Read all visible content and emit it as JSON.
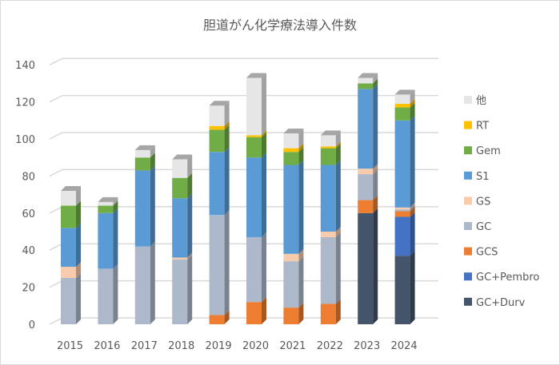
{
  "chart_data": {
    "type": "bar",
    "stacked": true,
    "style": "3d-stacked-column",
    "title": "胆道がん化学療法導入件数",
    "xlabel": "",
    "ylabel": "",
    "ylim": [
      0,
      140
    ],
    "yticks": [
      0,
      20,
      40,
      60,
      80,
      100,
      120,
      140
    ],
    "grid": true,
    "legend_position": "right",
    "categories": [
      "2015",
      "2016",
      "2017",
      "2018",
      "2019",
      "2020",
      "2021",
      "2022",
      "2023",
      "2024"
    ],
    "series": [
      {
        "name": "GC+Durv",
        "color": "#44546a",
        "values": [
          0,
          0,
          0,
          0,
          0,
          0,
          0,
          0,
          60,
          37
        ]
      },
      {
        "name": "GC+Pembro",
        "color": "#4472c4",
        "values": [
          0,
          0,
          0,
          0,
          0,
          0,
          0,
          0,
          0,
          21
        ]
      },
      {
        "name": "GCS",
        "color": "#ed7d31",
        "values": [
          0,
          0,
          0,
          0,
          5,
          12,
          9,
          11,
          7,
          3
        ]
      },
      {
        "name": "GC",
        "color": "#adb9ca",
        "values": [
          25,
          30,
          42,
          35,
          54,
          35,
          25,
          36,
          14,
          1
        ]
      },
      {
        "name": "GS",
        "color": "#f8cbad",
        "values": [
          6,
          0,
          0,
          1,
          0,
          0,
          4,
          3,
          3,
          1
        ]
      },
      {
        "name": "S1",
        "color": "#5b9bd5",
        "values": [
          21,
          30,
          41,
          32,
          34,
          43,
          48,
          36,
          43,
          47
        ]
      },
      {
        "name": "Gem",
        "color": "#70ad47",
        "values": [
          12,
          4,
          7,
          11,
          12,
          11,
          7,
          9,
          3,
          7
        ]
      },
      {
        "name": "RT",
        "color": "#ffc000",
        "values": [
          0,
          0,
          0,
          0,
          2,
          1,
          2,
          1,
          0,
          2
        ]
      },
      {
        "name": "他",
        "color": "#e7e6e6",
        "values": [
          8,
          2,
          4,
          10,
          11,
          31,
          8,
          6,
          3,
          5
        ]
      }
    ]
  }
}
